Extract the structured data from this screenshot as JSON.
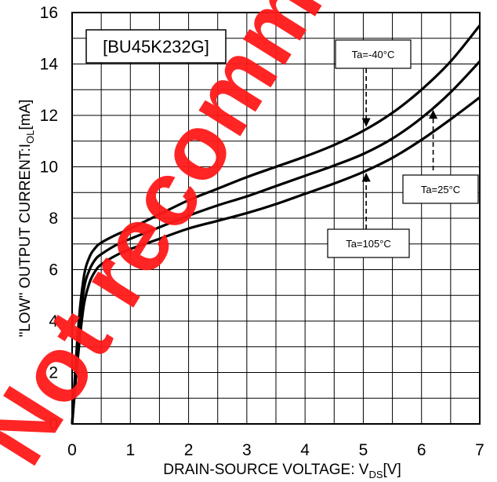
{
  "chart_data": {
    "type": "line",
    "title": "[BU45K232G]",
    "xlabel": "DRAIN-SOURCE VOLTAGE:  V",
    "xlabel_sub": "DS",
    "xlabel_unit": "[V]",
    "ylabel": "\"LOW\" OUTPUT CURRENT:I",
    "ylabel_sub": "OL",
    "ylabel_unit": "[mA]",
    "xlim": [
      0,
      7
    ],
    "ylim": [
      0,
      16
    ],
    "xticks": [
      "0",
      "1",
      "2",
      "3",
      "4",
      "5",
      "6",
      "7"
    ],
    "yticks": [
      "0",
      "2",
      "4",
      "6",
      "8",
      "10",
      "12",
      "14",
      "16"
    ],
    "grid": true,
    "series": [
      {
        "name": "Ta=-40°C",
        "x": [
          0,
          0.1,
          0.2,
          0.3,
          0.4,
          0.5,
          0.75,
          1,
          1.5,
          2,
          2.5,
          3,
          3.5,
          4,
          4.5,
          5,
          5.5,
          6,
          6.5,
          7
        ],
        "y": [
          0,
          3.6,
          5.7,
          6.5,
          6.85,
          7.05,
          7.35,
          7.6,
          8.15,
          8.7,
          9.15,
          9.6,
          10.0,
          10.4,
          10.85,
          11.4,
          12.1,
          13.0,
          14.1,
          15.5
        ]
      },
      {
        "name": "Ta=25°C",
        "x": [
          0,
          0.1,
          0.2,
          0.3,
          0.4,
          0.5,
          0.75,
          1,
          1.5,
          2,
          2.5,
          3,
          3.5,
          4,
          4.5,
          5,
          5.5,
          6,
          6.5,
          7
        ],
        "y": [
          0,
          3.1,
          5.2,
          6.0,
          6.4,
          6.6,
          6.95,
          7.2,
          7.65,
          8.1,
          8.5,
          8.85,
          9.25,
          9.65,
          10.05,
          10.5,
          11.1,
          11.9,
          12.9,
          14.1
        ]
      },
      {
        "name": "Ta=105°C",
        "x": [
          0,
          0.1,
          0.2,
          0.3,
          0.4,
          0.5,
          0.75,
          1,
          1.5,
          2,
          2.5,
          3,
          3.5,
          4,
          4.5,
          5,
          5.5,
          6,
          6.5,
          7
        ],
        "y": [
          0,
          2.6,
          4.6,
          5.5,
          5.95,
          6.2,
          6.55,
          6.8,
          7.2,
          7.6,
          7.9,
          8.2,
          8.55,
          8.95,
          9.35,
          9.8,
          10.35,
          11.05,
          11.85,
          12.7
        ]
      }
    ],
    "annotations": [
      {
        "text": "Ta=-40°C",
        "target_series": 0,
        "at_x": 5.05
      },
      {
        "text": "Ta=25°C",
        "target_series": 1,
        "at_x": 6.2
      },
      {
        "text": "Ta=105°C",
        "target_series": 2,
        "at_x": 5.05
      }
    ],
    "watermark": "Not recommended for new designs"
  }
}
